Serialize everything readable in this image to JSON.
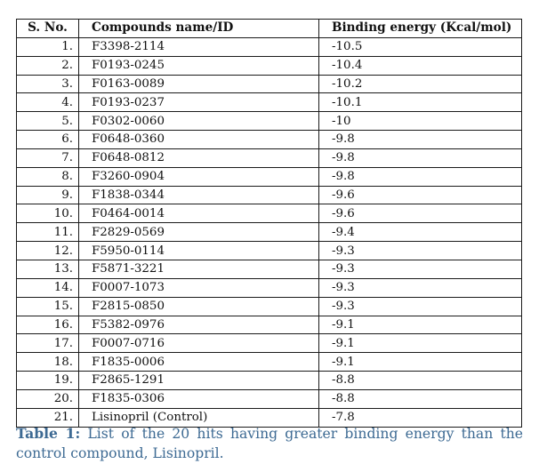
{
  "table": {
    "headers": [
      "S. No.",
      "Compounds name/ID",
      "Binding energy (Kcal/mol)"
    ],
    "rows": [
      [
        "1.",
        "F3398-2114",
        "-10.5"
      ],
      [
        "2.",
        "F0193-0245",
        "-10.4"
      ],
      [
        "3.",
        "F0163-0089",
        "-10.2"
      ],
      [
        "4.",
        "F0193-0237",
        "-10.1"
      ],
      [
        "5.",
        "F0302-0060",
        "-10"
      ],
      [
        "6.",
        "F0648-0360",
        "-9.8"
      ],
      [
        "7.",
        "F0648-0812",
        "-9.8"
      ],
      [
        "8.",
        "F3260-0904",
        "-9.8"
      ],
      [
        "9.",
        "F1838-0344",
        "-9.6"
      ],
      [
        "10.",
        "F0464-0014",
        "-9.6"
      ],
      [
        "11.",
        "F2829-0569",
        "-9.4"
      ],
      [
        "12.",
        "F5950-0114",
        "-9.3"
      ],
      [
        "13.",
        "F5871-3221",
        "-9.3"
      ],
      [
        "14.",
        "F0007-1073",
        "-9.3"
      ],
      [
        "15.",
        "F2815-0850",
        "-9.3"
      ],
      [
        "16.",
        "F5382-0976",
        "-9.1"
      ],
      [
        "17.",
        "F0007-0716",
        "-9.1"
      ],
      [
        "18.",
        "F1835-0006",
        "-9.1"
      ],
      [
        "19.",
        "F2865-1291",
        "-8.8"
      ],
      [
        "20.",
        "F1835-0306",
        "-8.8"
      ],
      [
        "21.",
        "Lisinopril (Control)",
        "-7.8"
      ]
    ]
  },
  "caption": {
    "label": "Table 1:",
    "text": " List of the 20 hits having greater binding energy than the control compound, Lisinopril."
  },
  "colors": {
    "caption": "#3d6a93",
    "border": "#1a1a1a",
    "text": "#111111"
  }
}
